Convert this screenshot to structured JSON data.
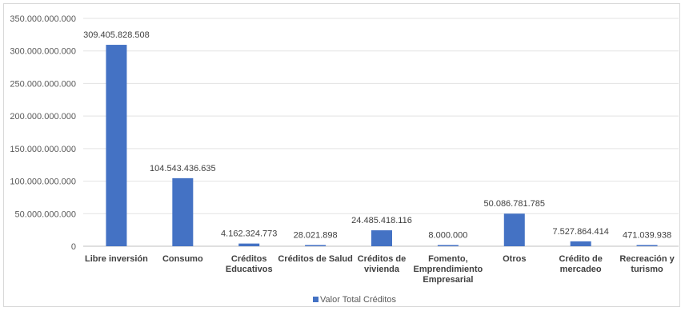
{
  "chart_data": {
    "type": "bar",
    "categories": [
      [
        "Libre inversión"
      ],
      [
        "Consumo"
      ],
      [
        "Créditos",
        "Educativos"
      ],
      [
        "Créditos de Salud"
      ],
      [
        "Créditos de",
        "vivienda"
      ],
      [
        "Fomento,",
        "Emprendimiento",
        "Empresarial"
      ],
      [
        "Otros"
      ],
      [
        "Crédito de",
        "mercadeo"
      ],
      [
        "Recreación y",
        "turismo"
      ]
    ],
    "series": [
      {
        "name": "Valor Total Créditos",
        "values": [
          309405828508,
          104543436635,
          4162324773,
          28021898,
          24485418116,
          8000000,
          50086781785,
          7527864414,
          471039938
        ],
        "labels": [
          "309.405.828.508",
          "104.543.436.635",
          "4.162.324.773",
          "28.021.898",
          "24.485.418.116",
          "8.000.000",
          "50.086.781.785",
          "7.527.864.414",
          "471.039.938"
        ],
        "color": "#4472c4"
      }
    ],
    "yticks": [
      0,
      50000000000,
      100000000000,
      150000000000,
      200000000000,
      250000000000,
      300000000000,
      350000000000
    ],
    "ytick_labels": [
      "0",
      "50.000.000.000",
      "100.000.000.000",
      "150.000.000.000",
      "200.000.000.000",
      "250.000.000.000",
      "300.000.000.000",
      "350.000.000.000"
    ],
    "ylim": [
      0,
      350000000000
    ],
    "grid": true,
    "legend_position": "bottom"
  }
}
